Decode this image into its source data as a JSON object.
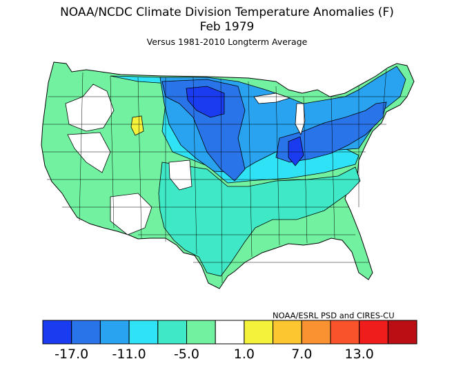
{
  "title": {
    "line1": "NOAA/NCDC Climate Division Temperature Anomalies (F)",
    "line2": "Feb 1979",
    "line3": "Versus 1981-2010 Longterm Average"
  },
  "credit": "NOAA/ESRL PSD and CIRES-CU",
  "legend": {
    "colors": [
      "#1a3cf0",
      "#2a74ea",
      "#29a3f0",
      "#30e2f6",
      "#3fe9c8",
      "#72f2a1",
      "#ffffff",
      "#f4f23a",
      "#fcc631",
      "#fb9231",
      "#f8532a",
      "#f01d1d",
      "#b80e14"
    ],
    "tick_labels": [
      "-17.0",
      "-11.0",
      "-5.0",
      "1.0",
      "7.0",
      "13.0"
    ],
    "tick_positions": [
      1,
      3,
      5,
      7,
      9,
      11
    ]
  }
}
